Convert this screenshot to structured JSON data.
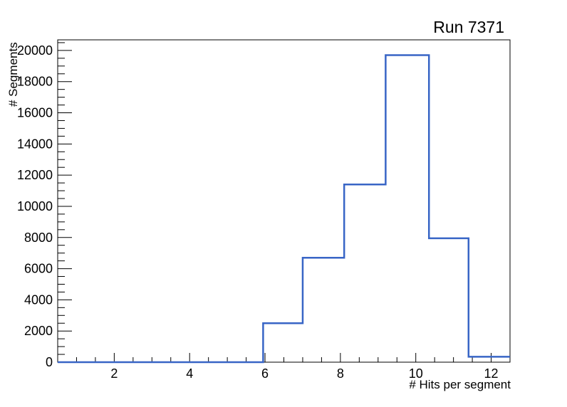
{
  "chart_data": {
    "type": "histogram-step",
    "title": "Run 7371",
    "xlabel": "# Hits per segment",
    "ylabel": "# Segments",
    "xlim": [
      0.5,
      12.5
    ],
    "ylim": [
      0,
      20680
    ],
    "x_major_ticks": [
      2,
      4,
      6,
      8,
      10,
      12
    ],
    "x_minor_step": 0.5,
    "y_major_ticks": [
      0,
      2000,
      4000,
      6000,
      8000,
      10000,
      12000,
      14000,
      16000,
      18000,
      20000
    ],
    "y_minor_step": 500,
    "bins": [
      {
        "x_low": 0.5,
        "x_high": 5.95,
        "count": 0
      },
      {
        "x_low": 5.95,
        "x_high": 7.0,
        "count": 2500
      },
      {
        "x_low": 7.0,
        "x_high": 8.1,
        "count": 6700
      },
      {
        "x_low": 8.1,
        "x_high": 9.2,
        "count": 11400
      },
      {
        "x_low": 9.2,
        "x_high": 10.35,
        "count": 19700
      },
      {
        "x_low": 10.35,
        "x_high": 11.4,
        "count": 7950
      },
      {
        "x_low": 11.4,
        "x_high": 12.5,
        "count": 350
      }
    ],
    "line_color": "#3865c6",
    "frame_color": "#000000",
    "background": "#ffffff",
    "grid": false,
    "legend": "none"
  }
}
